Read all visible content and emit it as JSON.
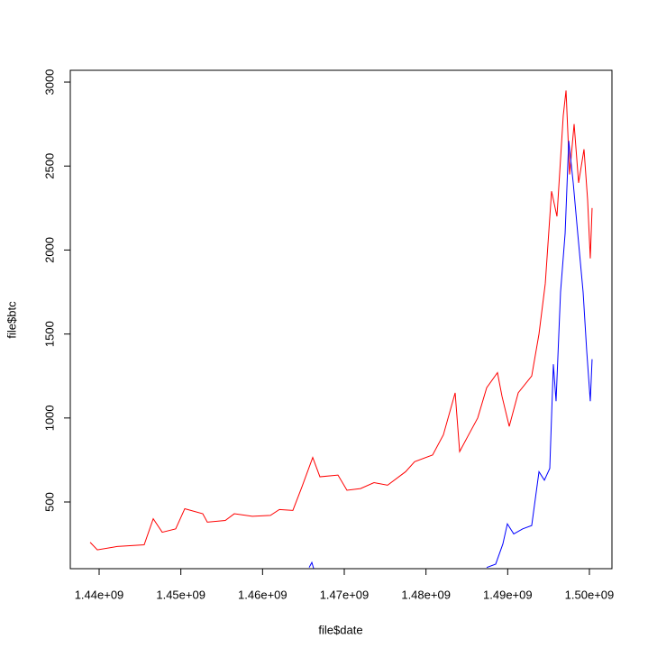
{
  "chart_data": {
    "type": "line",
    "x_label": "file$date",
    "y_label": "file$btc",
    "xlim": [
      1436470000,
      1502760000
    ],
    "ylim": [
      103,
      3070
    ],
    "xticks": [
      {
        "value": 1440000000,
        "label": "1.44e+09"
      },
      {
        "value": 1450000000,
        "label": "1.45e+09"
      },
      {
        "value": 1460000000,
        "label": "1.46e+09"
      },
      {
        "value": 1470000000,
        "label": "1.47e+09"
      },
      {
        "value": 1480000000,
        "label": "1.48e+09"
      },
      {
        "value": 1490000000,
        "label": "1.49e+09"
      },
      {
        "value": 1500000000,
        "label": "1.50e+09"
      }
    ],
    "yticks": [
      500,
      1000,
      1500,
      2000,
      2500,
      3000
    ],
    "series": [
      {
        "color": "#ff0000",
        "x": [
          1438900000,
          1439780000,
          1442210000,
          1445510000,
          1446620000,
          1447720000,
          1449370000,
          1450480000,
          1452680000,
          1453240000,
          1455440000,
          1456540000,
          1458750000,
          1460960000,
          1462060000,
          1463710000,
          1464820000,
          1466140000,
          1467020000,
          1469230000,
          1470330000,
          1471990000,
          1473640000,
          1475300000,
          1477500000,
          1478610000,
          1480810000,
          1482130000,
          1483570000,
          1484120000,
          1485220000,
          1486330000,
          1487430000,
          1488750000,
          1489300000,
          1490190000,
          1491290000,
          1492940000,
          1493830000,
          1494600000,
          1495370000,
          1496030000,
          1496800000,
          1497140000,
          1497580000,
          1498130000,
          1498680000,
          1499340000,
          1499780000,
          1500110000,
          1500330000
        ],
        "values": [
          260,
          215,
          235,
          245,
          400,
          320,
          340,
          460,
          430,
          380,
          390,
          430,
          415,
          420,
          455,
          450,
          590,
          765,
          650,
          660,
          570,
          580,
          615,
          600,
          680,
          740,
          780,
          900,
          1150,
          800,
          900,
          1000,
          1180,
          1270,
          1130,
          950,
          1150,
          1250,
          1500,
          1800,
          2350,
          2200,
          2800,
          2950,
          2450,
          2750,
          2400,
          2600,
          2300,
          1950,
          2250
        ]
      },
      {
        "color": "#0000ff",
        "x": [
          1465700000,
          1466030000,
          1466250000,
          1475000000,
          1487430000,
          1488530000,
          1489410000,
          1489960000,
          1490740000,
          1491840000,
          1492940000,
          1493830000,
          1494490000,
          1495150000,
          1495590000,
          1495920000,
          1496470000,
          1497030000,
          1497470000,
          1498020000,
          1498570000,
          1499230000,
          1499670000,
          1500110000,
          1500330000
        ],
        "values": [
          110,
          140,
          105,
          null,
          110,
          130,
          250,
          370,
          310,
          340,
          360,
          680,
          630,
          700,
          1320,
          1100,
          1750,
          2100,
          2650,
          2400,
          2100,
          1750,
          1400,
          1100,
          1350
        ]
      }
    ]
  }
}
